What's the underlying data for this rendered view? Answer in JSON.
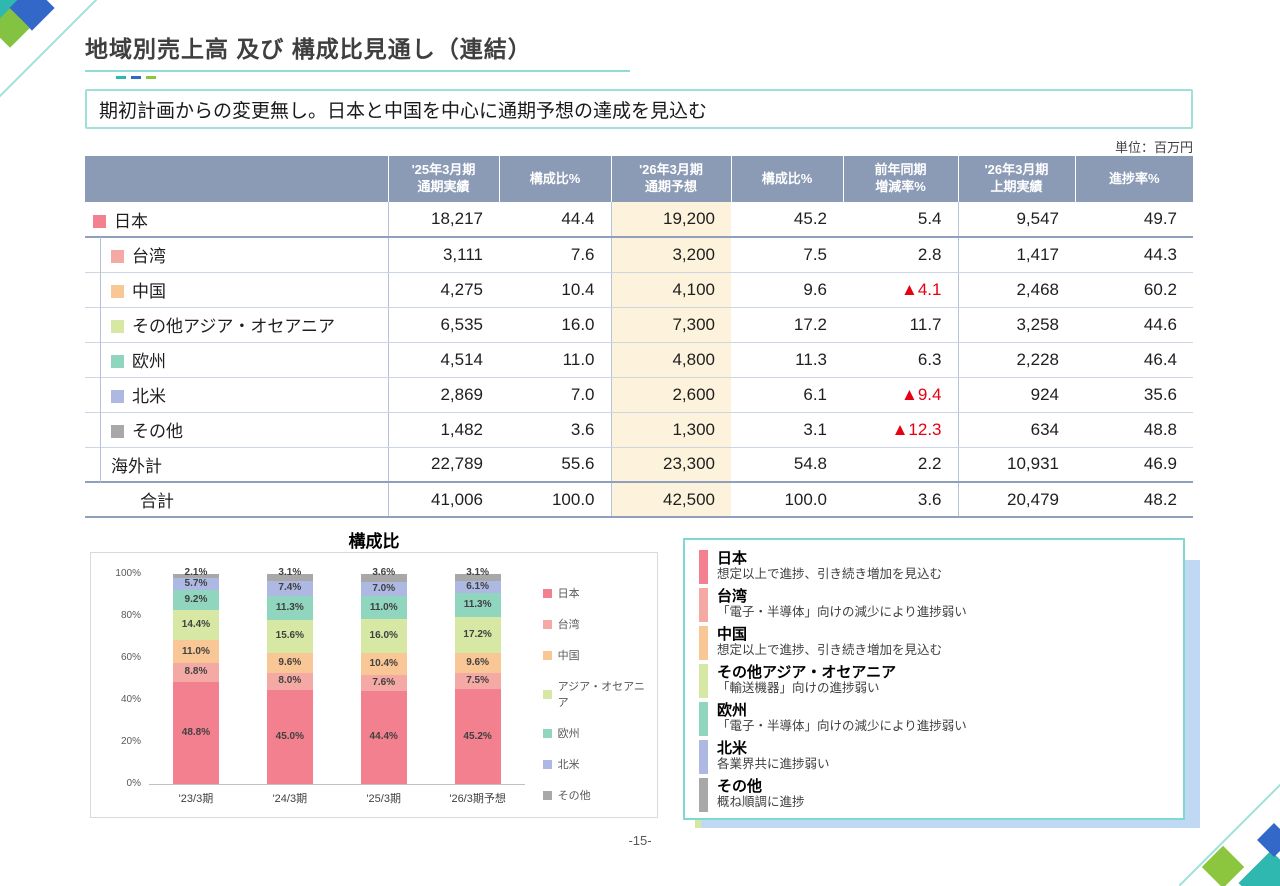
{
  "header": {
    "title": "地域別売上高 及び 構成比見通し（連結）",
    "message": "期初計画からの変更無し。日本と中国を中心に通期予想の達成を見込む",
    "unit_label": "単位：百万円"
  },
  "colors": {
    "japan": "#F2808E",
    "taiwan": "#F4A9A4",
    "china": "#F8C795",
    "asia_oceania": "#D7E7A4",
    "europe": "#90D5BD",
    "north_america": "#ADB9E3",
    "other": "#A8A8A8",
    "accent_teal": "#7ED8D3",
    "negative_red": "#E60012",
    "header_bg": "#8C9BB5",
    "forecast_bg": "#FDF3DC"
  },
  "table": {
    "columns": [
      "",
      "'25年3月期\n通期実績",
      "構成比%",
      "'26年3月期\n通期予想",
      "構成比%",
      "前年同期\n増減率%",
      "'26年3月期\n上期実績",
      "進捗率%"
    ],
    "rows": [
      {
        "name": "日本",
        "color_key": "japan",
        "indent": false,
        "values": [
          "18,217",
          "44.4",
          "19,200",
          "45.2",
          "5.4",
          "9,547",
          "49.7"
        ]
      },
      {
        "name": "台湾",
        "color_key": "taiwan",
        "indent": true,
        "values": [
          "3,111",
          "7.6",
          "3,200",
          "7.5",
          "2.8",
          "1,417",
          "44.3"
        ]
      },
      {
        "name": "中国",
        "color_key": "china",
        "indent": true,
        "values": [
          "4,275",
          "10.4",
          "4,100",
          "9.6",
          "▲4.1",
          "2,468",
          "60.2"
        ]
      },
      {
        "name": "その他アジア・オセアニア",
        "color_key": "asia_oceania",
        "indent": true,
        "values": [
          "6,535",
          "16.0",
          "7,300",
          "17.2",
          "11.7",
          "3,258",
          "44.6"
        ]
      },
      {
        "name": "欧州",
        "color_key": "europe",
        "indent": true,
        "values": [
          "4,514",
          "11.0",
          "4,800",
          "11.3",
          "6.3",
          "2,228",
          "46.4"
        ]
      },
      {
        "name": "北米",
        "color_key": "north_america",
        "indent": true,
        "values": [
          "2,869",
          "7.0",
          "2,600",
          "6.1",
          "▲9.4",
          "924",
          "35.6"
        ]
      },
      {
        "name": "その他",
        "color_key": "other",
        "indent": true,
        "values": [
          "1,482",
          "3.6",
          "1,300",
          "3.1",
          "▲12.3",
          "634",
          "48.8"
        ]
      },
      {
        "name": "海外計",
        "color_key": null,
        "indent": true,
        "subtotal": true,
        "values": [
          "22,789",
          "55.6",
          "23,300",
          "54.8",
          "2.2",
          "10,931",
          "46.9"
        ]
      },
      {
        "name": "合計",
        "color_key": null,
        "indent": false,
        "total": true,
        "values": [
          "41,006",
          "100.0",
          "42,500",
          "100.0",
          "3.6",
          "20,479",
          "48.2"
        ]
      }
    ]
  },
  "chart_data": {
    "type": "bar",
    "stacked": true,
    "title": "構成比",
    "categories": [
      "'23/3期",
      "'24/3期",
      "'25/3期",
      "'26/3期予想"
    ],
    "series": [
      {
        "name": "日本",
        "color_key": "japan",
        "values": [
          48.8,
          45.0,
          44.4,
          45.2
        ]
      },
      {
        "name": "台湾",
        "color_key": "taiwan",
        "values": [
          8.8,
          8.0,
          7.6,
          7.5
        ]
      },
      {
        "name": "中国",
        "color_key": "china",
        "values": [
          11.0,
          9.6,
          10.4,
          9.6
        ]
      },
      {
        "name": "アジア・オセアニア",
        "color_key": "asia_oceania",
        "values": [
          14.4,
          15.6,
          16.0,
          17.2
        ]
      },
      {
        "name": "欧州",
        "color_key": "europe",
        "values": [
          9.2,
          11.3,
          11.0,
          11.3
        ]
      },
      {
        "name": "北米",
        "color_key": "north_america",
        "values": [
          5.7,
          7.4,
          7.0,
          6.1
        ]
      },
      {
        "name": "その他",
        "color_key": "other",
        "values": [
          2.1,
          3.1,
          3.6,
          3.1
        ]
      }
    ],
    "y_ticks": [
      "0%",
      "20%",
      "40%",
      "60%",
      "80%",
      "100%"
    ],
    "ylim": [
      0,
      100
    ],
    "legend_position": "right",
    "value_suffix": "%"
  },
  "commentary": {
    "items": [
      {
        "name": "日本",
        "color_key": "japan",
        "desc": "想定以上で進捗、引き続き増加を見込む"
      },
      {
        "name": "台湾",
        "color_key": "taiwan",
        "desc": "「電子・半導体」向けの減少により進捗弱い"
      },
      {
        "name": "中国",
        "color_key": "china",
        "desc": "想定以上で進捗、引き続き増加を見込む"
      },
      {
        "name": "その他アジア・オセアニア",
        "color_key": "asia_oceania",
        "desc": "「輸送機器」向けの進捗弱い"
      },
      {
        "name": "欧州",
        "color_key": "europe",
        "desc": "「電子・半導体」向けの減少により進捗弱い"
      },
      {
        "name": "北米",
        "color_key": "north_america",
        "desc": "各業界共に進捗弱い"
      },
      {
        "name": "その他",
        "color_key": "other",
        "desc": "概ね順調に進捗"
      }
    ]
  },
  "footer": {
    "page_number": "-15-"
  }
}
